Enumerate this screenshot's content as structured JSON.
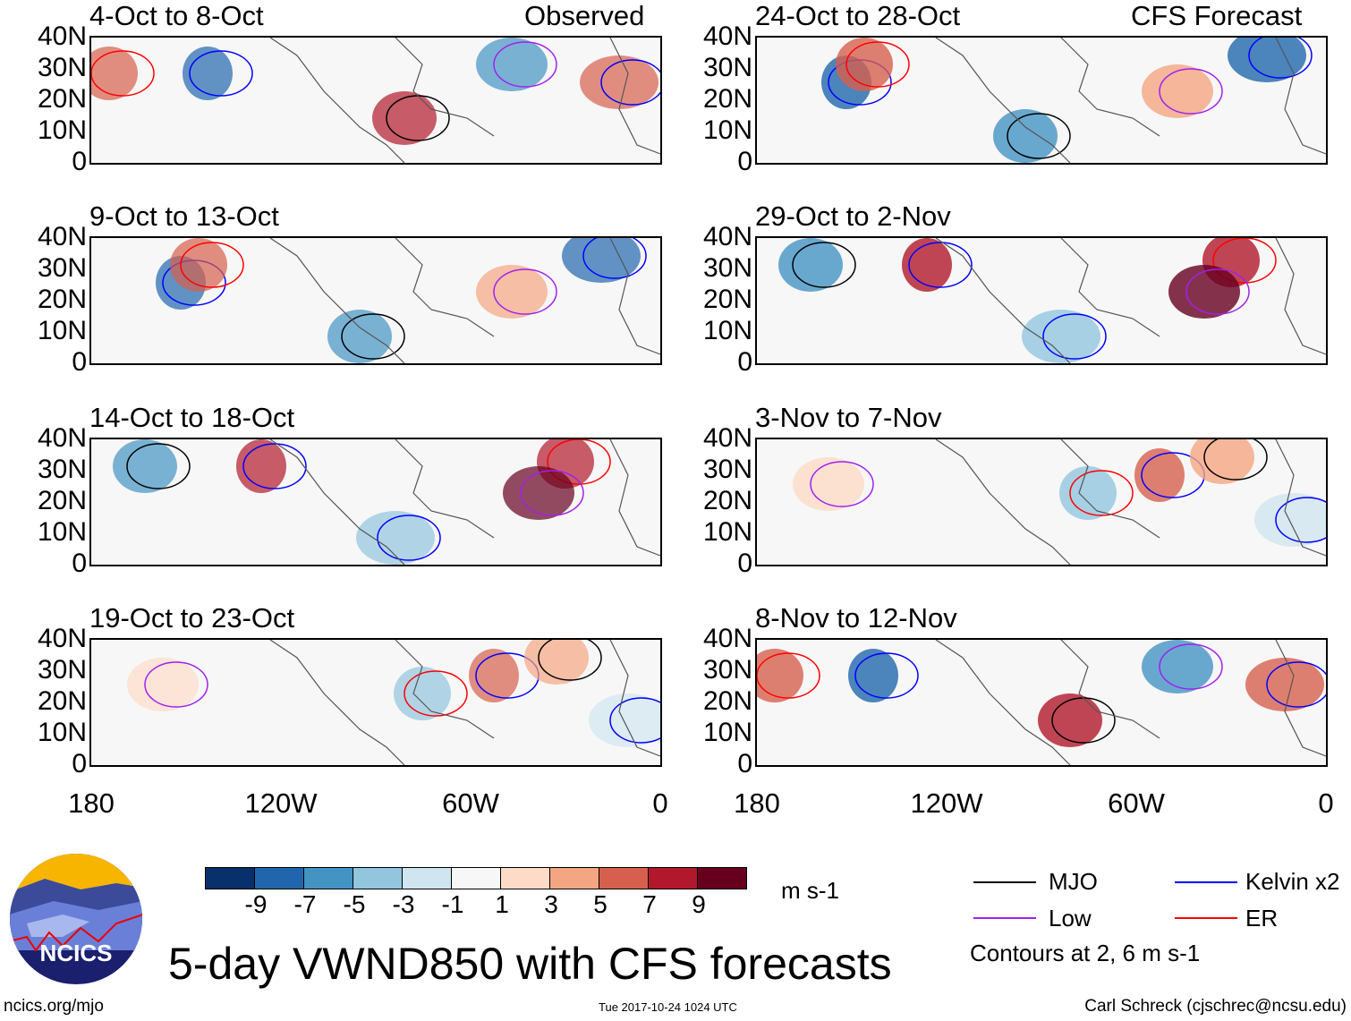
{
  "panels": {
    "left_header": "Observed",
    "right_header": "CFS Forecast",
    "left": [
      {
        "title": "4-Oct to 8-Oct"
      },
      {
        "title": "9-Oct to 13-Oct"
      },
      {
        "title": "14-Oct to 18-Oct"
      },
      {
        "title": "19-Oct to 23-Oct"
      }
    ],
    "right": [
      {
        "title": "24-Oct to 28-Oct"
      },
      {
        "title": "29-Oct to 2-Nov"
      },
      {
        "title": "3-Nov to 7-Nov"
      },
      {
        "title": "8-Nov to 12-Nov"
      }
    ]
  },
  "axes": {
    "lat_labels": [
      "40N",
      "30N",
      "20N",
      "10N",
      "0"
    ],
    "lon_labels": [
      "180",
      "120W",
      "60W",
      "0"
    ]
  },
  "colorbar": {
    "labels": [
      "-9",
      "-7",
      "-5",
      "-3",
      "-1",
      "1",
      "3",
      "5",
      "7",
      "9"
    ],
    "colors": [
      "#08306b",
      "#2166ac",
      "#4393c3",
      "#92c5de",
      "#d1e5f0",
      "#f7f7f7",
      "#fddbc7",
      "#f4a582",
      "#d6604d",
      "#b2182b",
      "#67001f"
    ],
    "units": "m s-1"
  },
  "legend": {
    "items": [
      {
        "label": "MJO",
        "color": "#000000"
      },
      {
        "label": "Kelvin x2",
        "color": "#0000ff"
      },
      {
        "label": "Low",
        "color": "#a020f0"
      },
      {
        "label": "ER",
        "color": "#ff0000"
      }
    ],
    "note": "Contours at 2, 6 m s-1"
  },
  "logo": {
    "text": "NCICS"
  },
  "title": "5-day VWND850 with CFS forecasts",
  "footer": {
    "url": "ncics.org/mjo",
    "timestamp": "Tue 2017-10-24 1024 UTC",
    "author": "Carl Schreck (cjschrec@ncsu.edu)"
  }
}
